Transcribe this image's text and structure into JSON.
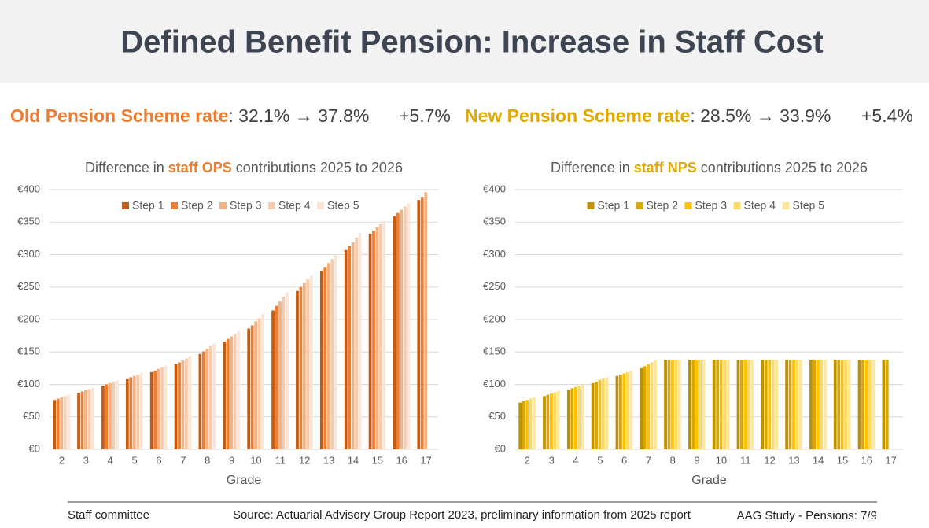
{
  "header": {
    "title": "Defined Benefit Pension: Increase in Staff Cost"
  },
  "rates": [
    {
      "name": "Old Pension Scheme rate",
      "color": "#ed7d31",
      "text": ": 32.1% → 37.8%",
      "change": "+5.7%"
    },
    {
      "name": "New Pension Scheme rate",
      "color": "#e0a800",
      "text": ": 28.5% → 33.9%",
      "change": "+5.4%"
    }
  ],
  "chart_data": [
    {
      "type": "bar",
      "title_parts": [
        "Difference in ",
        "staff OPS",
        " contributions 2025 to 2026"
      ],
      "title_highlight_color": "#ed7d31",
      "xlabel": "Grade",
      "categories": [
        "2",
        "3",
        "4",
        "5",
        "6",
        "7",
        "8",
        "9",
        "10",
        "11",
        "12",
        "13",
        "14",
        "15",
        "16",
        "17"
      ],
      "series": [
        {
          "name": "Step 1",
          "color": "#c55a11",
          "values": [
            76,
            87,
            98,
            108,
            119,
            131,
            147,
            166,
            186,
            214,
            244,
            275,
            307,
            332,
            359,
            384
          ]
        },
        {
          "name": "Step 2",
          "color": "#ed7d31",
          "values": [
            78,
            89,
            100,
            111,
            121,
            134,
            151,
            170,
            191,
            221,
            250,
            281,
            313,
            337,
            364,
            389
          ]
        },
        {
          "name": "Step 3",
          "color": "#f4b183",
          "values": [
            80,
            91,
            102,
            113,
            124,
            137,
            155,
            174,
            197,
            228,
            256,
            287,
            319,
            342,
            369,
            396
          ]
        },
        {
          "name": "Step 4",
          "color": "#f8cbad",
          "values": [
            82,
            93,
            104,
            115,
            126,
            140,
            159,
            178,
            202,
            235,
            262,
            293,
            326,
            347,
            374,
            null
          ]
        },
        {
          "name": "Step 5",
          "color": "#fbe5d6",
          "values": [
            84,
            95,
            106,
            118,
            129,
            143,
            163,
            182,
            208,
            242,
            268,
            300,
            333,
            352,
            379,
            null
          ]
        }
      ],
      "ylim": [
        0,
        400
      ],
      "yticks": [
        {
          "value": 0,
          "label": "€0"
        },
        {
          "value": 50,
          "label": "€50"
        },
        {
          "value": 100,
          "label": "€100"
        },
        {
          "value": 150,
          "label": "€150"
        },
        {
          "value": 200,
          "label": "€200"
        },
        {
          "value": 250,
          "label": "€250"
        },
        {
          "value": 300,
          "label": "€300"
        },
        {
          "value": 350,
          "label": "€350"
        },
        {
          "value": 400,
          "label": "€400"
        }
      ],
      "grid": true,
      "legend": "top"
    },
    {
      "type": "bar",
      "title_parts": [
        "Difference in ",
        "staff NPS",
        " contributions 2025 to 2026"
      ],
      "title_highlight_color": "#e0a800",
      "xlabel": "Grade",
      "categories": [
        "2",
        "3",
        "4",
        "5",
        "6",
        "7",
        "8",
        "9",
        "10",
        "11",
        "12",
        "13",
        "14",
        "15",
        "16",
        "17"
      ],
      "series": [
        {
          "name": "Step 1",
          "color": "#bf9000",
          "values": [
            72,
            82,
            92,
            102,
            113,
            125,
            138,
            138,
            138,
            138,
            138,
            138,
            138,
            138,
            138,
            138
          ]
        },
        {
          "name": "Step 2",
          "color": "#d9a800",
          "values": [
            74,
            84,
            94,
            104,
            115,
            128,
            138,
            138,
            138,
            138,
            138,
            138,
            138,
            138,
            138,
            138
          ]
        },
        {
          "name": "Step 3",
          "color": "#ffc000",
          "values": [
            76,
            86,
            96,
            107,
            117,
            131,
            138,
            138,
            138,
            138,
            138,
            138,
            138,
            138,
            138,
            null
          ]
        },
        {
          "name": "Step 4",
          "color": "#ffd966",
          "values": [
            78,
            88,
            98,
            109,
            119,
            134,
            138,
            138,
            138,
            138,
            138,
            138,
            138,
            138,
            138,
            null
          ]
        },
        {
          "name": "Step 5",
          "color": "#ffe699",
          "values": [
            80,
            90,
            100,
            111,
            121,
            137,
            138,
            138,
            138,
            138,
            138,
            138,
            138,
            138,
            138,
            null
          ]
        }
      ],
      "ylim": [
        0,
        400
      ],
      "yticks": [
        {
          "value": 0,
          "label": "€0"
        },
        {
          "value": 50,
          "label": "€50"
        },
        {
          "value": 100,
          "label": "€100"
        },
        {
          "value": 150,
          "label": "€150"
        },
        {
          "value": 200,
          "label": "€200"
        },
        {
          "value": 250,
          "label": "€250"
        },
        {
          "value": 300,
          "label": "€300"
        },
        {
          "value": 350,
          "label": "€350"
        },
        {
          "value": 400,
          "label": "€400"
        }
      ],
      "grid": true,
      "legend": "top"
    }
  ],
  "footer": {
    "left": "Staff committee",
    "center": "Source: Actuarial Advisory Group Report 2023, preliminary information from 2025 report",
    "right": "AAG Study - Pensions: 7/9"
  }
}
